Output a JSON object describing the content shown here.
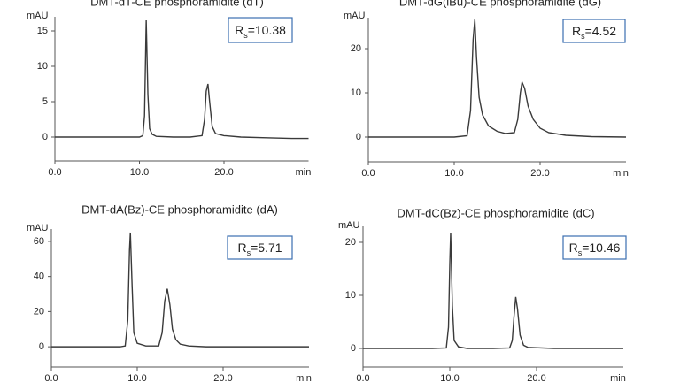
{
  "chart_data": [
    {
      "type": "line",
      "title": "DMT-dT-CE phosphoramidite (dT)",
      "x_label": "min",
      "y_label": "mAU",
      "annotation": {
        "main": "R",
        "sub": "s",
        "rest": "=10.38"
      },
      "xlim": [
        0,
        30
      ],
      "ylim": [
        -3,
        17
      ],
      "xticks": [
        {
          "value": 0,
          "label": "0.0"
        },
        {
          "value": 10,
          "label": "10.0"
        },
        {
          "value": 20,
          "label": "20.0"
        }
      ],
      "yticks": [
        0,
        5,
        10,
        15
      ],
      "color": "#3a3a3a",
      "x": [
        0,
        2,
        4,
        6,
        8,
        10,
        10.4,
        10.6,
        10.8,
        11.0,
        11.2,
        11.5,
        12,
        14,
        16,
        17.4,
        17.7,
        17.9,
        18.1,
        18.3,
        18.6,
        19,
        20,
        22,
        25,
        28,
        30
      ],
      "values": [
        0,
        0,
        0,
        0,
        0,
        0,
        0.2,
        3,
        16.5,
        6,
        1.2,
        0.4,
        0.1,
        0,
        0,
        0.2,
        2.5,
        6.5,
        7.5,
        5,
        1.5,
        0.5,
        0.2,
        0,
        -0.1,
        -0.2,
        -0.2
      ]
    },
    {
      "type": "line",
      "title": "DMT-dG(iBu)-CE phosphoramidite (dG)",
      "x_label": "min",
      "y_label": "mAU",
      "annotation": {
        "main": "R",
        "sub": "s",
        "rest": "=4.52"
      },
      "xlim": [
        0,
        30
      ],
      "ylim": [
        -5,
        27
      ],
      "xticks": [
        {
          "value": 0,
          "label": "0.0"
        },
        {
          "value": 10,
          "label": "10.0"
        },
        {
          "value": 20,
          "label": "20.0"
        }
      ],
      "yticks": [
        0,
        10,
        20
      ],
      "color": "#3a3a3a",
      "x": [
        0,
        2,
        4,
        6,
        8,
        10,
        11.5,
        11.9,
        12.2,
        12.4,
        12.6,
        12.9,
        13.3,
        14,
        15,
        16,
        17,
        17.4,
        17.7,
        17.9,
        18.2,
        18.6,
        19.2,
        20,
        21,
        23,
        26,
        30
      ],
      "values": [
        0,
        0,
        0,
        0,
        0,
        0,
        0.3,
        6,
        22,
        26.6,
        18,
        9,
        5,
        2.5,
        1.3,
        0.8,
        1,
        4,
        10,
        12.4,
        11,
        7,
        4,
        2,
        1,
        0.4,
        0.1,
        0
      ]
    },
    {
      "type": "line",
      "title": "DMT-dA(Bz)-CE phosphoramidite (dA)",
      "x_label": "min",
      "y_label": "mAU",
      "annotation": {
        "main": "R",
        "sub": "s",
        "rest": "=5.71"
      },
      "xlim": [
        0,
        30
      ],
      "ylim": [
        -10,
        67
      ],
      "xticks": [
        {
          "value": 0,
          "label": "0.0"
        },
        {
          "value": 10,
          "label": "10.0"
        },
        {
          "value": 20,
          "label": "20.0"
        }
      ],
      "yticks": [
        0,
        20,
        40,
        60
      ],
      "color": "#3a3a3a",
      "x": [
        0,
        2,
        4,
        6,
        8,
        8.6,
        8.9,
        9.1,
        9.2,
        9.4,
        9.6,
        10,
        11,
        12.5,
        12.9,
        13.2,
        13.5,
        13.8,
        14.1,
        14.5,
        15,
        16,
        18,
        22,
        26,
        30
      ],
      "values": [
        0,
        0,
        0,
        0,
        0,
        0.5,
        15,
        55,
        65,
        35,
        8,
        2,
        0.5,
        0.5,
        8,
        26,
        33,
        24,
        10,
        4,
        1.5,
        0.5,
        0,
        0,
        0,
        0
      ]
    },
    {
      "type": "line",
      "title": "DMT-dC(Bz)-CE phosphoramidite (dC)",
      "x_label": "min",
      "y_label": "mAU",
      "annotation": {
        "main": "R",
        "sub": "s",
        "rest": "=10.46"
      },
      "xlim": [
        0,
        30
      ],
      "ylim": [
        -3,
        23
      ],
      "xticks": [
        {
          "value": 0,
          "label": "0.0"
        },
        {
          "value": 10,
          "label": "10.0"
        },
        {
          "value": 20,
          "label": "20.0"
        }
      ],
      "yticks": [
        0,
        10,
        20
      ],
      "color": "#3a3a3a",
      "x": [
        0,
        2,
        4,
        6,
        8,
        9.6,
        9.85,
        10.0,
        10.1,
        10.3,
        10.5,
        11,
        12,
        15,
        16.9,
        17.2,
        17.4,
        17.6,
        17.8,
        18.1,
        18.5,
        19,
        22,
        26,
        30
      ],
      "values": [
        0,
        0,
        0,
        0,
        0,
        0.1,
        4,
        16,
        21.8,
        8,
        1.5,
        0.3,
        0,
        0,
        0.1,
        1.5,
        6,
        9.7,
        7.5,
        2.5,
        0.6,
        0.2,
        0,
        0,
        0
      ]
    }
  ]
}
